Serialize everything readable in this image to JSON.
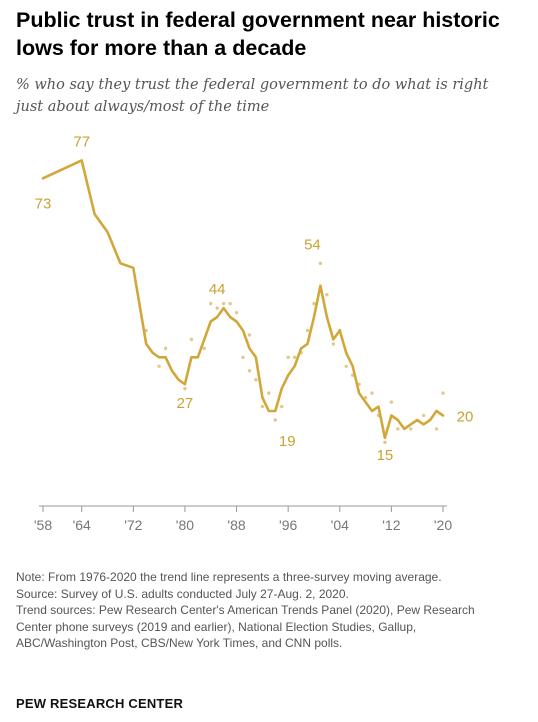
{
  "title": "Public trust in federal government near historic lows for more than a decade",
  "subtitle": "% who say they trust the federal government to do what is right just about always/most of the time",
  "notes": [
    "Note: From 1976-2020 the trend line represents a three-survey moving average.",
    "Source: Survey of U.S. adults conducted July 27-Aug. 2, 2020.",
    "Trend sources: Pew Research Center's American Trends Panel (2020), Pew Research Center phone surveys (2019 and earlier), National Election Studies, Gallup, ABC/Washington Post, CBS/New York Times, and CNN polls."
  ],
  "brand": "PEW RESEARCH CENTER",
  "colors": {
    "line": "#d1a73a",
    "dots": "#e2c88b",
    "axis": "#999999",
    "label": "#c9a234"
  },
  "chart_data": {
    "type": "line",
    "title": "Public trust in federal government near historic lows for more than a decade",
    "xlabel": "",
    "ylabel": "",
    "xlim": [
      1958,
      2020
    ],
    "ylim": [
      0,
      80
    ],
    "grid": false,
    "x_tick_labels": [
      {
        "x": 1958,
        "label": "'58"
      },
      {
        "x": 1964,
        "label": "'64"
      },
      {
        "x": 1972,
        "label": "'72"
      },
      {
        "x": 1980,
        "label": "'80"
      },
      {
        "x": 1988,
        "label": "'88"
      },
      {
        "x": 1996,
        "label": "'96"
      },
      {
        "x": 2004,
        "label": "'04"
      },
      {
        "x": 2012,
        "label": "'12"
      },
      {
        "x": 2020,
        "label": "'20"
      }
    ],
    "series": [
      {
        "name": "",
        "kind": "trend",
        "points": [
          [
            1958,
            73
          ],
          [
            1964,
            77
          ],
          [
            1966,
            65
          ],
          [
            1968,
            61
          ],
          [
            1970,
            54
          ],
          [
            1972,
            53
          ],
          [
            1974,
            36
          ],
          [
            1975,
            34
          ],
          [
            1976,
            33
          ],
          [
            1977,
            33
          ],
          [
            1978,
            30
          ],
          [
            1979,
            28
          ],
          [
            1980,
            27
          ],
          [
            1981,
            33
          ],
          [
            1982,
            33
          ],
          [
            1983,
            37
          ],
          [
            1984,
            41
          ],
          [
            1985,
            42
          ],
          [
            1986,
            44
          ],
          [
            1987,
            42
          ],
          [
            1988,
            41
          ],
          [
            1989,
            39
          ],
          [
            1990,
            35
          ],
          [
            1991,
            33
          ],
          [
            1992,
            24
          ],
          [
            1993,
            21
          ],
          [
            1994,
            21
          ],
          [
            1995,
            26
          ],
          [
            1996,
            29
          ],
          [
            1997,
            31
          ],
          [
            1998,
            35
          ],
          [
            1999,
            36
          ],
          [
            2000,
            42
          ],
          [
            2001,
            49
          ],
          [
            2002,
            42
          ],
          [
            2003,
            37
          ],
          [
            2004,
            39
          ],
          [
            2005,
            34
          ],
          [
            2006,
            31
          ],
          [
            2007,
            25
          ],
          [
            2008,
            23
          ],
          [
            2009,
            21
          ],
          [
            2010,
            22
          ],
          [
            2011,
            15
          ],
          [
            2012,
            20
          ],
          [
            2013,
            19
          ],
          [
            2014,
            17
          ],
          [
            2015,
            18
          ],
          [
            2016,
            19
          ],
          [
            2017,
            18
          ],
          [
            2018,
            19
          ],
          [
            2019,
            21
          ],
          [
            2020,
            20
          ]
        ]
      },
      {
        "name": "",
        "kind": "surveys",
        "points": [
          [
            1974,
            39
          ],
          [
            1976,
            31
          ],
          [
            1977,
            35
          ],
          [
            1980,
            26
          ],
          [
            1981,
            37
          ],
          [
            1983,
            35
          ],
          [
            1984,
            45
          ],
          [
            1985,
            44
          ],
          [
            1986,
            45
          ],
          [
            1987,
            45
          ],
          [
            1988,
            43
          ],
          [
            1989,
            33
          ],
          [
            1990,
            38
          ],
          [
            1990,
            30
          ],
          [
            1991,
            28
          ],
          [
            1992,
            22
          ],
          [
            1993,
            25
          ],
          [
            1994,
            19
          ],
          [
            1995,
            22
          ],
          [
            1996,
            33
          ],
          [
            1997,
            33
          ],
          [
            1998,
            34
          ],
          [
            1999,
            39
          ],
          [
            2000,
            45
          ],
          [
            2001,
            54
          ],
          [
            2002,
            47
          ],
          [
            2003,
            36
          ],
          [
            2004,
            39
          ],
          [
            2005,
            31
          ],
          [
            2006,
            29
          ],
          [
            2007,
            27
          ],
          [
            2008,
            24
          ],
          [
            2009,
            25
          ],
          [
            2010,
            20
          ],
          [
            2011,
            14
          ],
          [
            2012,
            23
          ],
          [
            2013,
            17
          ],
          [
            2015,
            17
          ],
          [
            2017,
            20
          ],
          [
            2019,
            17
          ],
          [
            2020,
            25
          ]
        ]
      }
    ],
    "data_labels": [
      {
        "x": 1958,
        "y": 73,
        "text": "73"
      },
      {
        "x": 1964,
        "y": 77,
        "text": "77"
      },
      {
        "x": 1980,
        "y": 27,
        "text": "27"
      },
      {
        "x": 1985,
        "y": 44,
        "text": "44"
      },
      {
        "x": 1994,
        "y": 19,
        "text": "19"
      },
      {
        "x": 2001,
        "y": 54,
        "text": "54"
      },
      {
        "x": 2011,
        "y": 15,
        "text": "15"
      },
      {
        "x": 2020,
        "y": 20,
        "text": "20"
      }
    ]
  }
}
